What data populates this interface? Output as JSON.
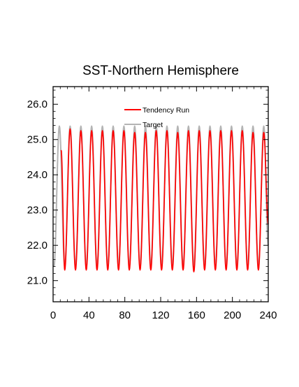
{
  "chart_data": {
    "type": "line",
    "title": "SST-Northern Hemisphere",
    "xlabel": "",
    "ylabel": "",
    "xlim": [
      0,
      240
    ],
    "ylim": [
      20.4,
      26.5
    ],
    "x_ticks": [
      0,
      40,
      80,
      120,
      160,
      200,
      240
    ],
    "y_ticks": [
      21.0,
      22.0,
      23.0,
      24.0,
      25.0,
      26.0
    ],
    "x_tick_labels": [
      "0",
      "40",
      "80",
      "120",
      "160",
      "200",
      "240"
    ],
    "y_tick_labels": [
      "21.0",
      "22.0",
      "23.0",
      "24.0",
      "25.0",
      "26.0"
    ],
    "grid": false,
    "legend_position": "top-center",
    "series": [
      {
        "name": "Tendency Run",
        "color": "#ff0000",
        "x_start": 9,
        "x_end": 240,
        "start_value": 24.7,
        "end_value": 22.6,
        "period": 12,
        "minima_x": [
          13,
          25,
          37,
          49,
          61,
          73,
          85,
          97,
          109,
          121,
          133,
          145,
          157,
          169,
          181,
          193,
          205,
          217,
          229
        ],
        "maxima_x": [
          19,
          31,
          43,
          55,
          67,
          79,
          91,
          103,
          115,
          127,
          139,
          151,
          163,
          175,
          187,
          199,
          211,
          223,
          235
        ],
        "minima": [
          21.3,
          21.3,
          21.3,
          21.3,
          21.3,
          21.3,
          21.3,
          21.3,
          21.3,
          21.3,
          21.3,
          21.3,
          21.25,
          21.3,
          21.3,
          21.3,
          21.3,
          21.3,
          21.3
        ],
        "maxima": [
          25.3,
          25.25,
          25.25,
          25.25,
          25.25,
          25.25,
          25.2,
          25.2,
          25.25,
          25.25,
          25.2,
          25.25,
          25.25,
          25.25,
          25.25,
          25.25,
          25.25,
          25.2,
          25.2
        ]
      },
      {
        "name": "Target",
        "color": "#b4b4b4",
        "x_start": 0,
        "x_end": 240,
        "period": 12,
        "min_value": 21.4,
        "max_value": 25.38,
        "minima_x": [
          1,
          13,
          25,
          37,
          49,
          61,
          73,
          85,
          97,
          109,
          121,
          133,
          145,
          157,
          169,
          181,
          193,
          205,
          217,
          229
        ],
        "maxima_x": [
          7,
          19,
          31,
          43,
          55,
          67,
          79,
          91,
          103,
          115,
          127,
          139,
          151,
          163,
          175,
          187,
          199,
          211,
          223,
          235
        ]
      }
    ]
  }
}
